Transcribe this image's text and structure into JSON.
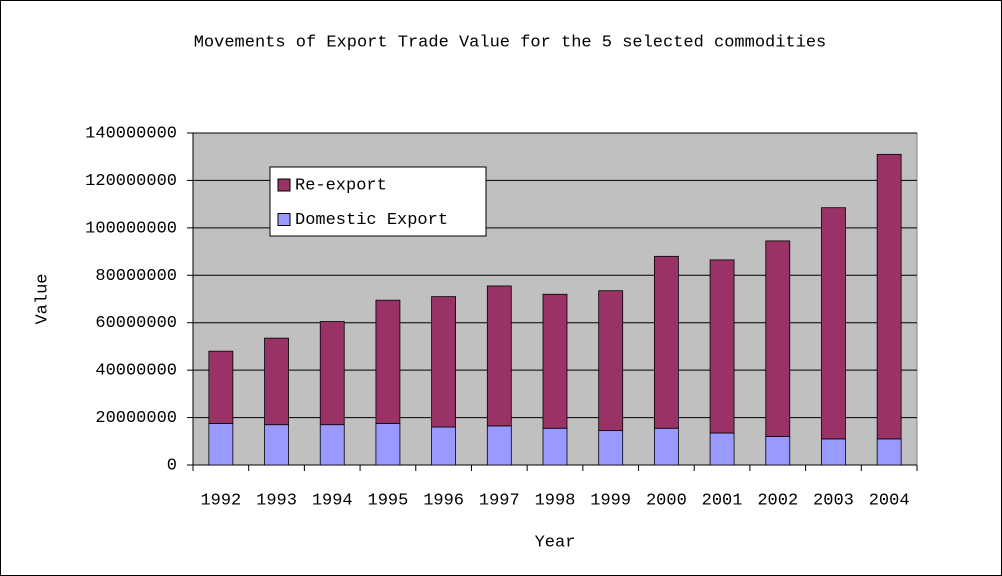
{
  "chart_data": {
    "type": "stacked-bar",
    "title": "Movements of Export Trade Value for the 5 selected commodities",
    "x_label": "Year",
    "y_label": "Value",
    "categories": [
      "1992",
      "1993",
      "1994",
      "1995",
      "1996",
      "1997",
      "1998",
      "1999",
      "2000",
      "2001",
      "2002",
      "2003",
      "2004"
    ],
    "series": [
      {
        "name": "Domestic Export",
        "color": "#9999ff",
        "values": [
          17500000,
          17000000,
          17000000,
          17500000,
          16000000,
          16500000,
          15500000,
          14500000,
          15500000,
          13500000,
          12000000,
          11000000,
          11000000
        ]
      },
      {
        "name": "Re-export",
        "color": "#993366",
        "values": [
          30500000,
          36500000,
          43500000,
          52000000,
          55000000,
          59000000,
          56500000,
          59000000,
          72500000,
          73000000,
          82500000,
          97500000,
          120000000
        ]
      }
    ],
    "ylim": [
      0,
      140000000
    ],
    "yticks": [
      0,
      20000000,
      40000000,
      60000000,
      80000000,
      100000000,
      120000000,
      140000000
    ],
    "grid": true,
    "plot_background": "#c0c0c0"
  }
}
